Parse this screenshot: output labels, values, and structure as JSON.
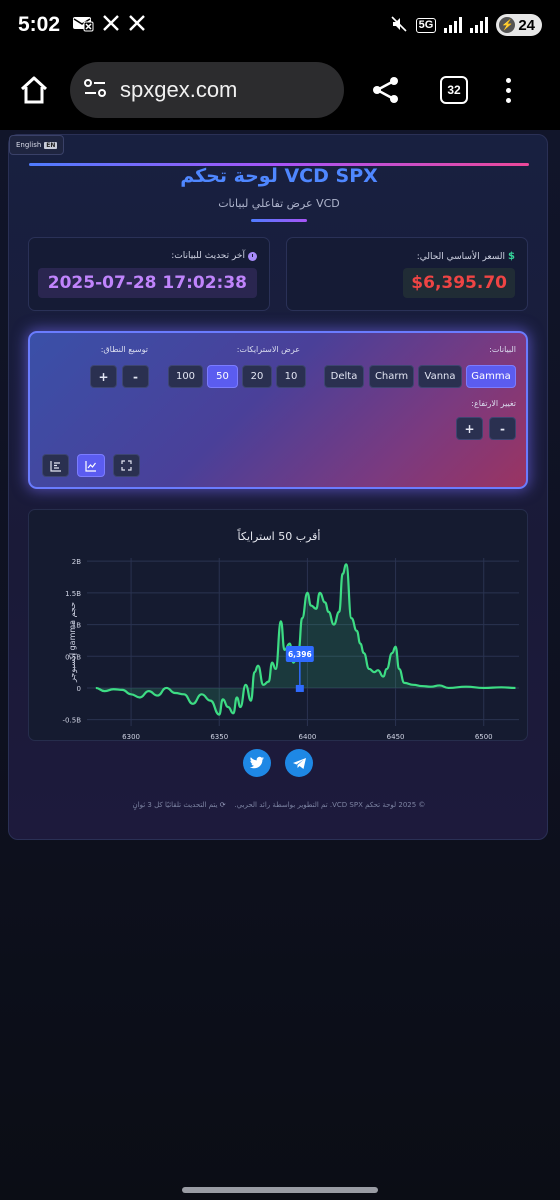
{
  "status_bar": {
    "time": "5:02",
    "left_icons": [
      "envelope-x-icon",
      "x-logo-icon",
      "x-logo-icon"
    ],
    "network": "5G",
    "battery": "24"
  },
  "browser": {
    "url": "spxgex.com",
    "tab_count": "32"
  },
  "page": {
    "lang_button": "English",
    "lang_flag": "EN",
    "title": "لوحة تحكم VCD SPX",
    "subtitle": "عرض تفاعلي لبيانات VCD",
    "price_label": "السعر الأساسي الحالي:",
    "price_symbol": "$",
    "price_value": "$6,395.70",
    "updated_label": "آخر تحديث للبيانات:",
    "updated_value": "2025-07-28 17:02:38"
  },
  "controls": {
    "data_label": "البيانات:",
    "data_options": [
      "Gamma",
      "Vanna",
      "Charm",
      "Delta"
    ],
    "data_selected": "Gamma",
    "strikes_label": "عرض الاسترايكات:",
    "strike_options": [
      "10",
      "20",
      "50",
      "100"
    ],
    "strike_selected": "50",
    "range_label": "توسيع النطاق:",
    "range_minus": "-",
    "range_plus": "+",
    "height_label": "تغيير الارتفاع:",
    "height_minus": "-",
    "height_plus": "+"
  },
  "chart_data": {
    "type": "area",
    "title": "أقرب 50 استرايكاً",
    "ylabel": "إكسبوجر gamma حجم",
    "xlabel": "",
    "xlim": [
      6275,
      6520
    ],
    "ylim": [
      -0.6,
      2.05
    ],
    "x_ticks": [
      6300,
      6350,
      6400,
      6450,
      6500
    ],
    "y_ticks": [
      -0.5,
      0,
      0.5,
      1,
      1.5,
      2
    ],
    "y_tick_labels": [
      "-0.5B",
      "0",
      "0.5B",
      "1B",
      "1.5B",
      "2B"
    ],
    "grid": true,
    "line_color": "#3ddc84",
    "spot_marker": {
      "x": 6395.7,
      "label": "6,396"
    },
    "x": [
      6280,
      6285,
      6290,
      6295,
      6300,
      6305,
      6310,
      6315,
      6320,
      6325,
      6330,
      6335,
      6340,
      6345,
      6350,
      6352,
      6355,
      6358,
      6360,
      6362,
      6365,
      6368,
      6370,
      6372,
      6375,
      6378,
      6380,
      6382,
      6385,
      6387,
      6390,
      6392,
      6395,
      6397,
      6400,
      6402,
      6405,
      6407,
      6410,
      6412,
      6415,
      6418,
      6420,
      6422,
      6425,
      6428,
      6430,
      6432,
      6435,
      6438,
      6440,
      6443,
      6445,
      6448,
      6450,
      6452,
      6455,
      6460,
      6465,
      6470,
      6475,
      6480,
      6490,
      6500,
      6510,
      6518
    ],
    "y": [
      0.0,
      -0.05,
      -0.02,
      -0.03,
      -0.1,
      -0.15,
      -0.05,
      -0.12,
      0.0,
      -0.08,
      -0.1,
      -0.25,
      -0.1,
      -0.2,
      -0.42,
      -0.18,
      -0.3,
      -0.4,
      -0.15,
      -0.3,
      0.05,
      -0.2,
      0.25,
      0.35,
      0.05,
      0.1,
      0.4,
      0.3,
      1.05,
      0.6,
      0.7,
      0.4,
      0.6,
      1.1,
      1.5,
      1.3,
      1.25,
      1.5,
      1.35,
      1.2,
      1.0,
      1.2,
      1.8,
      1.95,
      1.1,
      0.9,
      0.7,
      0.55,
      0.3,
      0.25,
      0.28,
      0.18,
      0.3,
      0.55,
      0.65,
      0.3,
      0.08,
      0.05,
      0.03,
      0.02,
      0.04,
      0.0,
      0.02,
      0.0,
      0.01,
      0.0
    ]
  },
  "social": [
    "twitter-icon",
    "telegram-icon"
  ],
  "footer": {
    "copyright": "© 2025 لوحة تحكم VCD SPX. تم التطوير بواسطة رائد الحربي.",
    "refresh_note": "يتم التحديث تلقائيًا كل 3 ثوانٍ"
  }
}
